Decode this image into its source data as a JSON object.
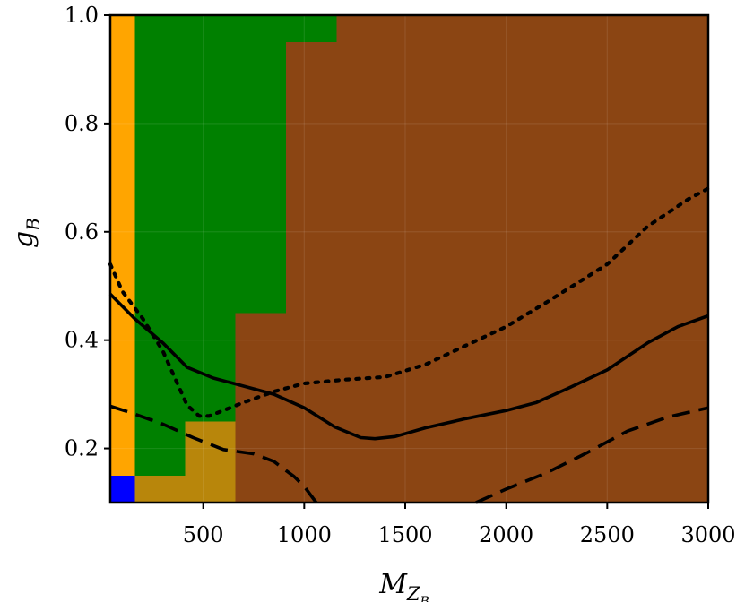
{
  "chart_data": {
    "type": "heatmap",
    "title": "",
    "xlabel": {
      "main": "M",
      "sub1": "Z",
      "sub2": "B"
    },
    "ylabel": {
      "main": "g",
      "sub": "B"
    },
    "xlim": [
      40,
      3000
    ],
    "ylim": [
      0.1,
      1.0
    ],
    "x_ticks": [
      500,
      1000,
      1500,
      2000,
      2500,
      3000
    ],
    "x_tick_labels": [
      "500",
      "1000",
      "1500",
      "2000",
      "2500",
      "3000"
    ],
    "y_ticks": [
      0.2,
      0.4,
      0.6,
      0.8,
      1.0
    ],
    "y_tick_labels": [
      "0.2",
      "0.4",
      "0.6",
      "0.8",
      "1.0"
    ],
    "grid": true,
    "colors": {
      "orange": "#FFA500",
      "green": "#008000",
      "brown": "#8B4513",
      "blue": "#0000FF",
      "gold": "#B8860B"
    },
    "regions": [
      {
        "color": "orange",
        "x": [
          40,
          163
        ],
        "y": [
          0.1,
          1.0
        ]
      },
      {
        "color": "blue",
        "x": [
          40,
          163
        ],
        "y": [
          0.1,
          0.15
        ]
      },
      {
        "color": "green",
        "x": [
          163,
          1160
        ],
        "y": [
          0.95,
          1.0
        ]
      },
      {
        "color": "green",
        "x": [
          163,
          910
        ],
        "y": [
          0.45,
          0.95
        ]
      },
      {
        "color": "green",
        "x": [
          163,
          660
        ],
        "y": [
          0.25,
          0.45
        ]
      },
      {
        "color": "green",
        "x": [
          163,
          410
        ],
        "y": [
          0.15,
          0.25
        ]
      },
      {
        "color": "gold",
        "x": [
          163,
          660
        ],
        "y": [
          0.1,
          0.15
        ]
      },
      {
        "color": "gold",
        "x": [
          410,
          660
        ],
        "y": [
          0.15,
          0.25
        ]
      }
    ],
    "background_color": "brown",
    "series": [
      {
        "style": "solid",
        "x": [
          40,
          160,
          300,
          420,
          550,
          700,
          850,
          1000,
          1150,
          1280,
          1350,
          1450,
          1600,
          1800,
          2000,
          2150,
          2300,
          2500,
          2700,
          2850,
          3000
        ],
        "y": [
          0.485,
          0.44,
          0.395,
          0.35,
          0.33,
          0.315,
          0.3,
          0.275,
          0.24,
          0.22,
          0.218,
          0.222,
          0.238,
          0.255,
          0.27,
          0.285,
          0.31,
          0.345,
          0.395,
          0.425,
          0.445
        ]
      },
      {
        "style": "dotted",
        "x": [
          40,
          100,
          200,
          300,
          420,
          480,
          530,
          600,
          700,
          850,
          1000,
          1200,
          1400,
          1600,
          1800,
          2000,
          2200,
          2500,
          2700,
          2900,
          3000
        ],
        "y": [
          0.54,
          0.49,
          0.44,
          0.38,
          0.28,
          0.26,
          0.26,
          0.27,
          0.285,
          0.305,
          0.32,
          0.327,
          0.332,
          0.355,
          0.39,
          0.425,
          0.47,
          0.54,
          0.61,
          0.66,
          0.68
        ]
      },
      {
        "style": "dashed",
        "x": [
          40,
          150,
          300,
          450,
          600,
          750,
          850,
          950,
          1000,
          1060
        ],
        "y": [
          0.278,
          0.265,
          0.245,
          0.22,
          0.198,
          0.19,
          0.176,
          0.148,
          0.13,
          0.1
        ]
      },
      {
        "style": "dashed",
        "x": [
          1850,
          2000,
          2200,
          2400,
          2600,
          2800,
          3000
        ],
        "y": [
          0.1,
          0.125,
          0.155,
          0.192,
          0.232,
          0.258,
          0.275
        ]
      }
    ]
  }
}
